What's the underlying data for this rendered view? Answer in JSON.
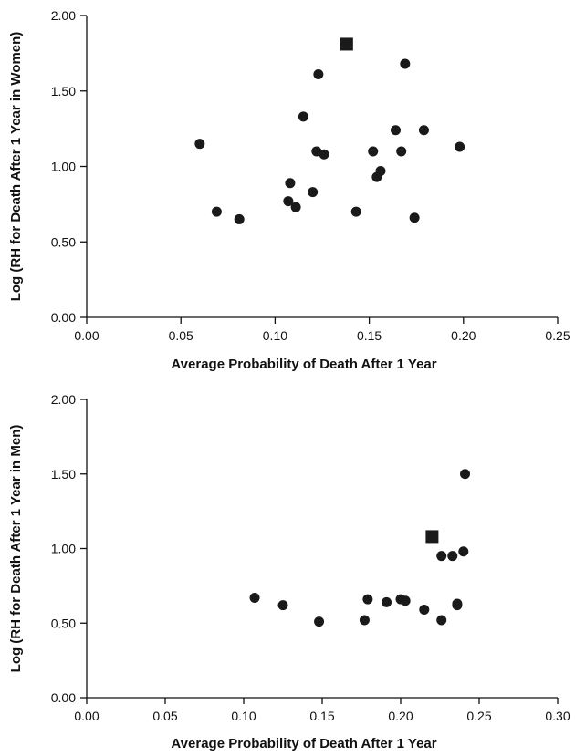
{
  "chart_data": [
    {
      "type": "scatter",
      "title": "",
      "xlabel": "Average Probability of Death After 1 Year",
      "ylabel": "Log (RH for Death After 1 Year in Women)",
      "xlim": [
        0,
        0.25
      ],
      "ylim": [
        0,
        2.0
      ],
      "x_ticks": [
        "0.00",
        "0.05",
        "0.10",
        "0.15",
        "0.20",
        "0.25"
      ],
      "y_ticks": [
        "0.00",
        "0.50",
        "1.00",
        "1.50",
        "2.00"
      ],
      "grid": false,
      "series": [
        {
          "marker": "circle",
          "points": [
            [
              0.06,
              1.15
            ],
            [
              0.069,
              0.7
            ],
            [
              0.081,
              0.65
            ],
            [
              0.107,
              0.77
            ],
            [
              0.108,
              0.89
            ],
            [
              0.111,
              0.73
            ],
            [
              0.115,
              1.33
            ],
            [
              0.12,
              0.83
            ],
            [
              0.122,
              1.1
            ],
            [
              0.123,
              1.61
            ],
            [
              0.126,
              1.08
            ],
            [
              0.143,
              0.7
            ],
            [
              0.152,
              1.1
            ],
            [
              0.154,
              0.93
            ],
            [
              0.156,
              0.97
            ],
            [
              0.164,
              1.24
            ],
            [
              0.167,
              1.1
            ],
            [
              0.169,
              1.68
            ],
            [
              0.174,
              0.66
            ],
            [
              0.179,
              1.24
            ],
            [
              0.198,
              1.13
            ]
          ]
        },
        {
          "marker": "square",
          "points": [
            [
              0.138,
              1.81
            ]
          ]
        }
      ]
    },
    {
      "type": "scatter",
      "title": "",
      "xlabel": "Average Probability of Death After 1 Year",
      "ylabel": "Log (RH for Death After 1 Year in Men)",
      "xlim": [
        0,
        0.3
      ],
      "ylim": [
        0,
        2.0
      ],
      "x_ticks": [
        "0.00",
        "0.05",
        "0.10",
        "0.15",
        "0.20",
        "0.25",
        "0.30"
      ],
      "y_ticks": [
        "0.00",
        "0.50",
        "1.00",
        "1.50",
        "2.00"
      ],
      "grid": false,
      "series": [
        {
          "marker": "circle",
          "points": [
            [
              0.107,
              0.67
            ],
            [
              0.125,
              0.62
            ],
            [
              0.148,
              0.51
            ],
            [
              0.177,
              0.52
            ],
            [
              0.179,
              0.66
            ],
            [
              0.191,
              0.64
            ],
            [
              0.2,
              0.66
            ],
            [
              0.203,
              0.65
            ],
            [
              0.215,
              0.59
            ],
            [
              0.226,
              0.52
            ],
            [
              0.226,
              0.95
            ],
            [
              0.233,
              0.95
            ],
            [
              0.236,
              0.62
            ],
            [
              0.236,
              0.63
            ],
            [
              0.24,
              0.98
            ],
            [
              0.241,
              1.5
            ]
          ]
        },
        {
          "marker": "square",
          "points": [
            [
              0.22,
              1.08
            ]
          ]
        }
      ]
    }
  ]
}
